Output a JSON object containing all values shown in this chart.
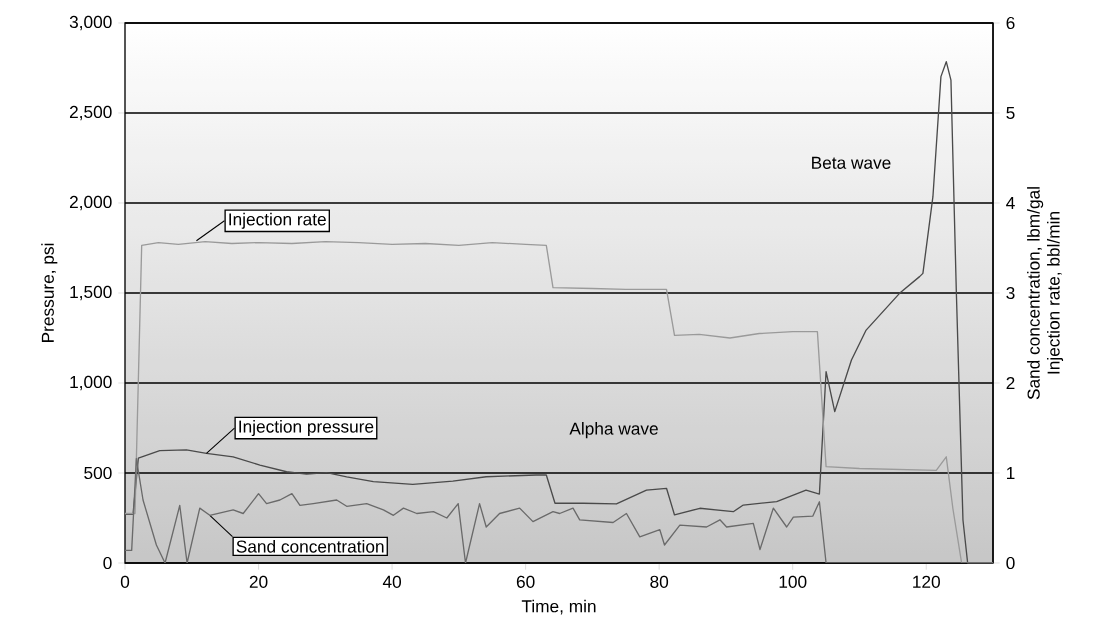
{
  "chart_data": {
    "type": "line",
    "xlabel": "Time, min",
    "ylabel": "Pressure, psi",
    "y2label": "Sand concentration, lbm/gal",
    "xlim": [
      0,
      130
    ],
    "xticks": [
      0,
      20,
      40,
      60,
      80,
      100,
      120
    ],
    "ylim": [
      0,
      3000
    ],
    "yticks": [
      0,
      500,
      {
        "value": 1000,
        "label": "1,000"
      },
      {
        "value": 1500,
        "label": "1,500"
      },
      {
        "value": 2000,
        "label": "2,000"
      },
      {
        "value": 2500,
        "label": "2,500"
      },
      {
        "value": 3000,
        "label": "3,000"
      }
    ],
    "y2lim": [
      0,
      6
    ],
    "y2ticks": [
      0,
      1,
      2,
      3,
      4,
      5,
      6
    ],
    "grid": "y",
    "line_style": "solid",
    "series": [
      {
        "color": "#9a9a9a",
        "axis": "y2",
        "x": [
          0,
          1.5,
          2.5,
          5,
          8,
          12,
          16,
          20,
          25,
          30,
          35,
          40,
          45,
          50,
          55,
          60,
          63.1,
          64.1,
          70,
          75,
          81.1,
          82.3,
          86,
          90.6,
          95,
          100,
          103.7,
          105.0,
          110,
          121.5,
          123.0,
          124.0,
          125.3,
          130
        ],
        "values": [
          0.55,
          0.55,
          3.53,
          3.56,
          3.54,
          3.57,
          3.55,
          3.56,
          3.55,
          3.57,
          3.56,
          3.54,
          3.55,
          3.53,
          3.56,
          3.54,
          3.53,
          3.06,
          3.05,
          3.04,
          3.04,
          2.53,
          2.54,
          2.5,
          2.55,
          2.57,
          2.57,
          1.07,
          1.05,
          1.03,
          1.18,
          0.6,
          0,
          0
        ]
      },
      {
        "color": "#4a4a4a",
        "x": [
          0,
          1.2,
          2.0,
          5.2,
          9.2,
          12.2,
          16.2,
          20.2,
          24.2,
          27.2,
          30.2,
          33.2,
          37.2,
          43.1,
          49.1,
          54.1,
          61.6,
          63.1,
          64.4,
          68.6,
          73.6,
          78.1,
          81.1,
          82.3,
          86.1,
          91.1,
          92.6,
          97.6,
          102.0,
          104.0,
          105.0,
          106.3,
          108.8,
          111.0,
          116.0,
          119.0,
          119.5,
          121.0,
          122.2,
          123.0,
          123.7,
          124.5,
          125.5,
          126.2,
          130
        ],
        "values": [
          270,
          270,
          583,
          624,
          628,
          609,
          590,
          544,
          507,
          494,
          502,
          479,
          452,
          437,
          455,
          479,
          489,
          489,
          332,
          332,
          328,
          405,
          415,
          267,
          304,
          285,
          322,
          341,
          405,
          383,
          1063,
          841,
          1128,
          1294,
          1498,
          1591,
          1609,
          2035,
          2702,
          2785,
          2683,
          1517,
          239,
          0,
          0
        ]
      },
      {
        "color": "#6a6a6a",
        "axis": "y2",
        "x": [
          0,
          1.0,
          1.7,
          2.7,
          4.7,
          6.0,
          8.2,
          9.3,
          11.2,
          12.7,
          16.2,
          17.7,
          20.0,
          21.2,
          23.2,
          25.0,
          26.2,
          28.2,
          31.7,
          33.2,
          36.2,
          38.7,
          40.2,
          41.7,
          43.7,
          46.2,
          48.2,
          49.9,
          51.0,
          53.1,
          54.1,
          56.1,
          59.1,
          61.1,
          64.1,
          65.1,
          67.1,
          68.1,
          73.1,
          75.1,
          77.1,
          80.1,
          80.8,
          83.1,
          87.1,
          89.1,
          90.1,
          94.1,
          95.1,
          97.1,
          99.1,
          100.1,
          103.0,
          104.0,
          105.0,
          130
        ],
        "values": [
          0.14,
          0.14,
          1.16,
          0.7,
          0.2,
          0,
          0.64,
          0,
          0.61,
          0.53,
          0.59,
          0.55,
          0.77,
          0.66,
          0.7,
          0.77,
          0.64,
          0.66,
          0.7,
          0.63,
          0.66,
          0.59,
          0.53,
          0.61,
          0.55,
          0.57,
          0.5,
          0.66,
          0,
          0.66,
          0.4,
          0.55,
          0.61,
          0.46,
          0.57,
          0.55,
          0.61,
          0.48,
          0.45,
          0.55,
          0.29,
          0.37,
          0.2,
          0.42,
          0.4,
          0.48,
          0.4,
          0.44,
          0.15,
          0.61,
          0.4,
          0.51,
          0.52,
          0.68,
          0,
          0
        ]
      }
    ],
    "annotations": [
      {
        "text": "Injection rate",
        "x": 10.7,
        "y": 1790
      },
      {
        "text": "Injection pressure",
        "x": 12.2,
        "y": 609
      },
      {
        "text": "Sand concentration",
        "x": 12.7,
        "y": 265
      },
      "Alpha wave",
      "Beta wave",
      "Injection rate, bbl/min"
    ]
  }
}
